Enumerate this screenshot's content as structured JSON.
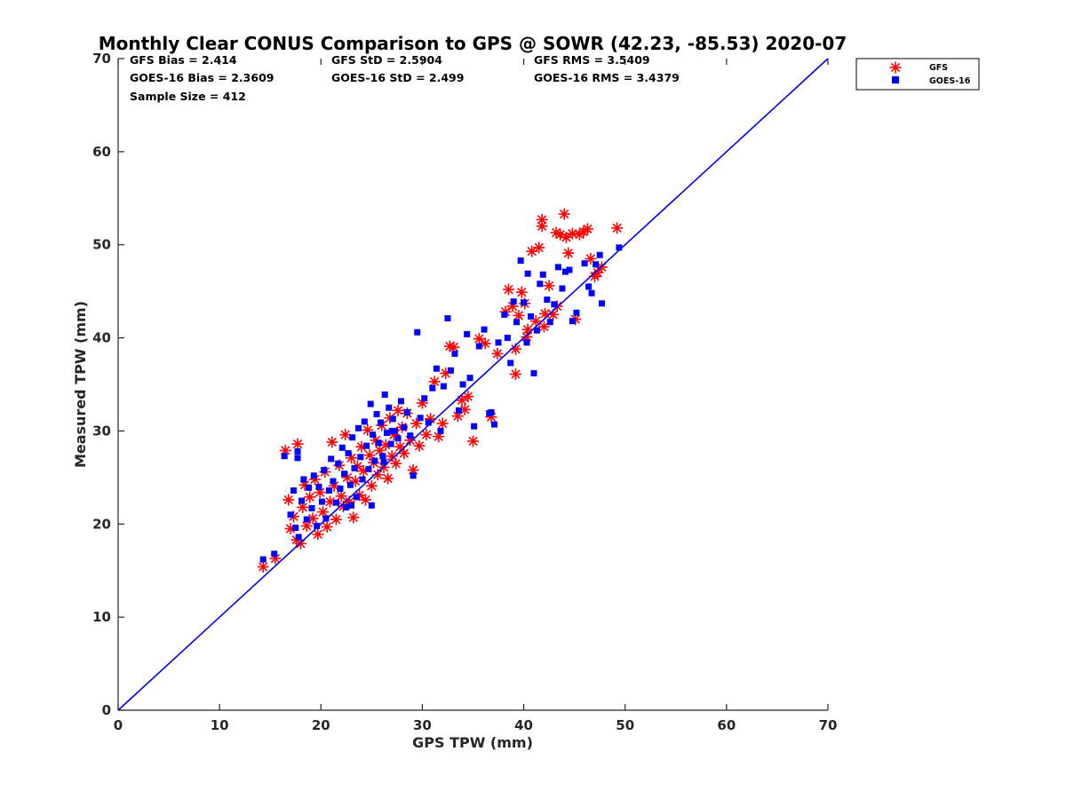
{
  "chart_data": {
    "type": "scatter",
    "title": "Monthly Clear CONUS Comparison to GPS @ SOWR (42.23, -85.53) 2020-07",
    "xlabel": "GPS TPW (mm)",
    "ylabel": "Measured TPW (mm)",
    "xlim": [
      0,
      70
    ],
    "ylim": [
      0,
      70
    ],
    "xticks": [
      "0",
      "10",
      "20",
      "30",
      "40",
      "50",
      "60",
      "70"
    ],
    "yticks": [
      "0",
      "10",
      "20",
      "30",
      "40",
      "50",
      "60",
      "70"
    ],
    "grid": false,
    "legend_position": "top-right",
    "stats": {
      "gfs_bias": "GFS Bias = 2.414",
      "goes_bias": "GOES-16 Bias = 2.3609",
      "sample_size": "Sample Size = 412",
      "gfs_std": "GFS StD = 2.5904",
      "goes_std": "GOES-16 StD = 2.499",
      "gfs_rms": "GFS RMS = 3.5409",
      "goes_rms": "GOES-16 RMS = 3.4379"
    },
    "reference_line": {
      "x": [
        0,
        70
      ],
      "y": [
        0,
        70
      ],
      "color": "#0000ee"
    },
    "series": [
      {
        "name": "GFS",
        "marker": "asterisk",
        "color": "#ff0000",
        "points": [
          [
            14.3,
            15.4
          ],
          [
            15.5,
            16.3
          ],
          [
            16.5,
            27.9
          ],
          [
            17.7,
            28.6
          ],
          [
            16.8,
            22.6
          ],
          [
            17.0,
            19.5
          ],
          [
            17.3,
            20.8
          ],
          [
            17.6,
            18.3
          ],
          [
            18.0,
            17.9
          ],
          [
            18.2,
            21.8
          ],
          [
            18.4,
            24.2
          ],
          [
            18.6,
            19.8
          ],
          [
            18.9,
            22.9
          ],
          [
            19.2,
            20.6
          ],
          [
            19.4,
            24.8
          ],
          [
            19.7,
            18.9
          ],
          [
            19.9,
            23.4
          ],
          [
            20.2,
            21.3
          ],
          [
            20.4,
            25.6
          ],
          [
            20.6,
            19.7
          ],
          [
            20.9,
            22.4
          ],
          [
            21.1,
            28.8
          ],
          [
            21.3,
            24.1
          ],
          [
            21.5,
            20.5
          ],
          [
            21.8,
            26.3
          ],
          [
            22.0,
            23.0
          ],
          [
            22.2,
            21.9
          ],
          [
            22.4,
            29.6
          ],
          [
            22.6,
            25.0
          ],
          [
            22.8,
            22.4
          ],
          [
            23.0,
            27.1
          ],
          [
            23.2,
            20.7
          ],
          [
            23.4,
            24.6
          ],
          [
            23.6,
            26.2
          ],
          [
            23.8,
            23.1
          ],
          [
            24.0,
            28.3
          ],
          [
            24.2,
            25.7
          ],
          [
            24.4,
            22.6
          ],
          [
            24.6,
            30.1
          ],
          [
            24.8,
            27.4
          ],
          [
            25.0,
            24.1
          ],
          [
            25.2,
            26.6
          ],
          [
            25.4,
            29.0
          ],
          [
            25.6,
            25.3
          ],
          [
            25.8,
            27.9
          ],
          [
            26.0,
            30.6
          ],
          [
            26.2,
            26.1
          ],
          [
            26.4,
            28.5
          ],
          [
            26.6,
            24.9
          ],
          [
            26.8,
            31.4
          ],
          [
            27.0,
            27.3
          ],
          [
            27.2,
            29.6
          ],
          [
            27.4,
            26.5
          ],
          [
            27.6,
            32.2
          ],
          [
            27.8,
            28.3
          ],
          [
            28.0,
            30.4
          ],
          [
            28.2,
            27.6
          ],
          [
            28.5,
            31.9
          ],
          [
            28.8,
            29.0
          ],
          [
            29.1,
            25.8
          ],
          [
            29.4,
            30.8
          ],
          [
            29.7,
            28.4
          ],
          [
            30.0,
            33.0
          ],
          [
            30.4,
            29.6
          ],
          [
            30.8,
            31.3
          ],
          [
            31.2,
            35.3
          ],
          [
            31.6,
            29.4
          ],
          [
            32.0,
            30.8
          ],
          [
            32.3,
            36.2
          ],
          [
            32.7,
            39.1
          ],
          [
            33.1,
            39.0
          ],
          [
            33.5,
            31.6
          ],
          [
            33.9,
            33.3
          ],
          [
            34.2,
            32.3
          ],
          [
            34.5,
            33.7
          ],
          [
            35.0,
            28.9
          ],
          [
            35.6,
            39.9
          ],
          [
            36.2,
            39.4
          ],
          [
            36.8,
            31.5
          ],
          [
            37.4,
            38.3
          ],
          [
            38.2,
            42.8
          ],
          [
            38.5,
            45.2
          ],
          [
            38.9,
            43.4
          ],
          [
            39.2,
            36.1
          ],
          [
            39.5,
            42.4
          ],
          [
            39.8,
            44.9
          ],
          [
            40.1,
            43.7
          ],
          [
            40.4,
            40.9
          ],
          [
            40.8,
            49.3
          ],
          [
            41.2,
            41.8
          ],
          [
            41.5,
            49.7
          ],
          [
            41.8,
            52.7
          ],
          [
            41.8,
            52.0
          ],
          [
            42.1,
            42.6
          ],
          [
            42.5,
            45.6
          ],
          [
            42.9,
            42.5
          ],
          [
            43.2,
            51.3
          ],
          [
            43.6,
            51.1
          ],
          [
            44.0,
            53.3
          ],
          [
            44.2,
            50.8
          ],
          [
            44.4,
            49.1
          ],
          [
            44.8,
            51.2
          ],
          [
            45.1,
            42.0
          ],
          [
            45.5,
            51.1
          ],
          [
            45.9,
            51.4
          ],
          [
            46.3,
            51.7
          ],
          [
            46.6,
            48.5
          ],
          [
            47.0,
            46.6
          ],
          [
            47.3,
            47.0
          ],
          [
            47.7,
            47.6
          ],
          [
            49.2,
            51.8
          ],
          [
            39.2,
            38.8
          ],
          [
            43.3,
            43.4
          ],
          [
            40.3,
            40.1
          ],
          [
            42.0,
            41.2
          ]
        ]
      },
      {
        "name": "GOES-16",
        "marker": "square",
        "color": "#0000ff",
        "points": [
          [
            14.3,
            16.2
          ],
          [
            15.4,
            16.8
          ],
          [
            16.4,
            27.3
          ],
          [
            17.7,
            27.8
          ],
          [
            17.7,
            27.1
          ],
          [
            17.0,
            21.0
          ],
          [
            17.3,
            23.6
          ],
          [
            17.5,
            19.6
          ],
          [
            17.8,
            18.6
          ],
          [
            18.1,
            22.5
          ],
          [
            18.3,
            24.8
          ],
          [
            18.6,
            20.5
          ],
          [
            18.8,
            23.9
          ],
          [
            19.1,
            21.7
          ],
          [
            19.3,
            25.2
          ],
          [
            19.6,
            19.8
          ],
          [
            19.8,
            24.0
          ],
          [
            20.1,
            22.4
          ],
          [
            20.3,
            25.8
          ],
          [
            20.5,
            20.6
          ],
          [
            20.8,
            23.6
          ],
          [
            21.0,
            27.0
          ],
          [
            21.2,
            24.6
          ],
          [
            21.5,
            22.3
          ],
          [
            21.7,
            26.5
          ],
          [
            21.9,
            23.8
          ],
          [
            22.1,
            28.2
          ],
          [
            22.3,
            25.4
          ],
          [
            22.5,
            21.8
          ],
          [
            22.7,
            27.6
          ],
          [
            22.9,
            24.2
          ],
          [
            23.1,
            29.3
          ],
          [
            23.3,
            26.0
          ],
          [
            23.5,
            22.9
          ],
          [
            23.7,
            30.3
          ],
          [
            23.9,
            27.2
          ],
          [
            24.1,
            24.8
          ],
          [
            24.3,
            31.0
          ],
          [
            24.5,
            28.4
          ],
          [
            24.7,
            25.9
          ],
          [
            24.9,
            32.9
          ],
          [
            25.1,
            29.6
          ],
          [
            25.3,
            26.8
          ],
          [
            25.5,
            31.8
          ],
          [
            25.7,
            28.7
          ],
          [
            25.9,
            30.9
          ],
          [
            26.1,
            27.3
          ],
          [
            26.3,
            33.9
          ],
          [
            26.5,
            29.8
          ],
          [
            26.7,
            32.5
          ],
          [
            26.9,
            28.6
          ],
          [
            27.1,
            31.3
          ],
          [
            27.3,
            30.0
          ],
          [
            27.6,
            29.2
          ],
          [
            27.9,
            33.2
          ],
          [
            28.2,
            30.4
          ],
          [
            28.5,
            32.0
          ],
          [
            28.8,
            29.5
          ],
          [
            29.1,
            25.2
          ],
          [
            29.5,
            40.6
          ],
          [
            29.8,
            31.4
          ],
          [
            30.2,
            33.5
          ],
          [
            30.6,
            30.9
          ],
          [
            31.0,
            34.6
          ],
          [
            31.4,
            36.7
          ],
          [
            31.8,
            30.0
          ],
          [
            32.1,
            34.8
          ],
          [
            32.5,
            42.1
          ],
          [
            32.8,
            36.5
          ],
          [
            33.2,
            38.3
          ],
          [
            33.6,
            32.2
          ],
          [
            34.0,
            35.0
          ],
          [
            34.4,
            40.4
          ],
          [
            34.7,
            35.7
          ],
          [
            35.1,
            30.5
          ],
          [
            35.6,
            39.1
          ],
          [
            36.1,
            40.9
          ],
          [
            36.6,
            31.9
          ],
          [
            37.1,
            30.7
          ],
          [
            37.5,
            39.5
          ],
          [
            38.1,
            42.5
          ],
          [
            38.4,
            40.0
          ],
          [
            38.7,
            37.3
          ],
          [
            39.0,
            43.9
          ],
          [
            39.3,
            41.7
          ],
          [
            39.7,
            48.3
          ],
          [
            40.0,
            43.8
          ],
          [
            40.4,
            46.9
          ],
          [
            40.7,
            42.3
          ],
          [
            41.0,
            36.2
          ],
          [
            41.3,
            40.8
          ],
          [
            41.6,
            45.8
          ],
          [
            41.9,
            46.8
          ],
          [
            42.3,
            44.1
          ],
          [
            42.6,
            41.7
          ],
          [
            43.0,
            43.6
          ],
          [
            43.4,
            47.6
          ],
          [
            43.8,
            45.3
          ],
          [
            44.1,
            47.1
          ],
          [
            44.5,
            47.3
          ],
          [
            44.8,
            41.8
          ],
          [
            45.2,
            42.7
          ],
          [
            46.0,
            48.0
          ],
          [
            46.4,
            45.5
          ],
          [
            46.7,
            44.8
          ],
          [
            47.1,
            47.9
          ],
          [
            47.5,
            48.9
          ],
          [
            47.7,
            43.7
          ],
          [
            49.4,
            49.7
          ],
          [
            36.8,
            32.0
          ],
          [
            40.3,
            39.5
          ],
          [
            26.2,
            26.7
          ],
          [
            25.0,
            22.0
          ],
          [
            23.0,
            22.0
          ],
          [
            27.0,
            30.0
          ]
        ]
      }
    ]
  }
}
